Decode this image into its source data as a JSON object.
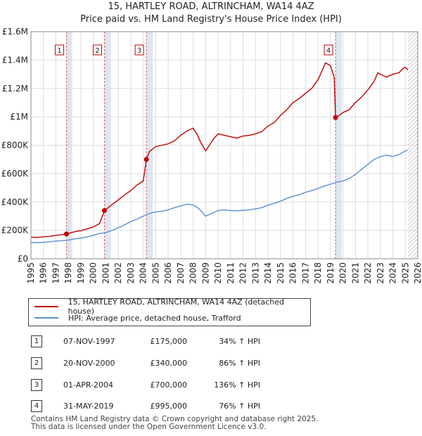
{
  "chart_data": {
    "type": "line",
    "title": "15, HARTLEY ROAD, ALTRINCHAM, WA14 4AZ",
    "subtitle": "Price paid vs. HM Land Registry's House Price Index (HPI)",
    "xlabel": "",
    "ylabel": "",
    "xlim": [
      1995,
      2026
    ],
    "ylim": [
      0,
      1600000
    ],
    "x_ticks": [
      "1995",
      "1996",
      "1997",
      "1998",
      "1999",
      "2000",
      "2001",
      "2002",
      "2003",
      "2004",
      "2005",
      "2006",
      "2007",
      "2008",
      "2009",
      "2010",
      "2011",
      "2012",
      "2013",
      "2014",
      "2015",
      "2016",
      "2017",
      "2018",
      "2019",
      "2020",
      "2021",
      "2022",
      "2023",
      "2024",
      "2025",
      "2026"
    ],
    "y_ticks": [
      {
        "value": 0,
        "label": "£0"
      },
      {
        "value": 200000,
        "label": "£200K"
      },
      {
        "value": 400000,
        "label": "£400K"
      },
      {
        "value": 600000,
        "label": "£600K"
      },
      {
        "value": 800000,
        "label": "£800K"
      },
      {
        "value": 1000000,
        "label": "£1M"
      },
      {
        "value": 1200000,
        "label": "£1.2M"
      },
      {
        "value": 1400000,
        "label": "£1.4M"
      },
      {
        "value": 1600000,
        "label": "£1.6M"
      }
    ],
    "grid": true,
    "shaded_spans": [
      {
        "label": "1",
        "start": 1997.85,
        "end": 1998.3
      },
      {
        "label": "2",
        "start": 2000.89,
        "end": 2001.4
      },
      {
        "label": "3",
        "start": 2004.25,
        "end": 2004.75
      },
      {
        "label": "4",
        "start": 2019.41,
        "end": 2019.9
      }
    ],
    "future_hatch_start": 2025.2,
    "series": [
      {
        "name": "15, HARTLEY ROAD, ALTRINCHAM, WA14 4AZ (detached house)",
        "color": "#c00000",
        "x": [
          1995.0,
          1995.5,
          1996.0,
          1996.5,
          1997.0,
          1997.5,
          1997.85,
          1998.5,
          1999.0,
          1999.5,
          2000.0,
          2000.5,
          2000.89,
          2001.5,
          2002.0,
          2002.5,
          2003.0,
          2003.5,
          2004.0,
          2004.25,
          2004.5,
          2005.0,
          2005.5,
          2006.0,
          2006.5,
          2007.0,
          2007.5,
          2008.0,
          2008.3,
          2008.6,
          2009.0,
          2009.3,
          2009.6,
          2010.0,
          2010.5,
          2011.0,
          2011.5,
          2012.0,
          2012.5,
          2013.0,
          2013.5,
          2014.0,
          2014.5,
          2015.0,
          2015.5,
          2016.0,
          2016.5,
          2017.0,
          2017.5,
          2018.0,
          2018.3,
          2018.6,
          2019.0,
          2019.3,
          2019.41,
          2019.7,
          2020.0,
          2020.5,
          2021.0,
          2021.5,
          2022.0,
          2022.5,
          2022.8,
          2023.0,
          2023.5,
          2024.0,
          2024.5,
          2024.8,
          2025.0,
          2025.2
        ],
        "values": [
          152000,
          150000,
          155000,
          158000,
          165000,
          170000,
          175000,
          190000,
          198000,
          210000,
          225000,
          248000,
          340000,
          382000,
          415000,
          450000,
          480000,
          520000,
          548000,
          700000,
          755000,
          790000,
          800000,
          810000,
          830000,
          870000,
          900000,
          920000,
          880000,
          820000,
          760000,
          800000,
          840000,
          880000,
          870000,
          860000,
          850000,
          865000,
          870000,
          880000,
          895000,
          935000,
          960000,
          1010000,
          1050000,
          1100000,
          1130000,
          1165000,
          1200000,
          1260000,
          1320000,
          1380000,
          1360000,
          1280000,
          995000,
          1010000,
          1030000,
          1050000,
          1100000,
          1140000,
          1190000,
          1250000,
          1310000,
          1300000,
          1280000,
          1300000,
          1310000,
          1340000,
          1350000,
          1330000
        ]
      },
      {
        "name": "HPI: Average price, detached house, Trafford",
        "color": "#5b8fd0",
        "x": [
          1995.0,
          1995.5,
          1996.0,
          1996.5,
          1997.0,
          1997.5,
          1998.0,
          1998.5,
          1999.0,
          1999.5,
          2000.0,
          2000.5,
          2001.0,
          2001.5,
          2002.0,
          2002.5,
          2003.0,
          2003.5,
          2004.0,
          2004.5,
          2005.0,
          2005.5,
          2006.0,
          2006.5,
          2007.0,
          2007.5,
          2008.0,
          2008.5,
          2009.0,
          2009.5,
          2010.0,
          2010.5,
          2011.0,
          2011.5,
          2012.0,
          2012.5,
          2013.0,
          2013.5,
          2014.0,
          2014.5,
          2015.0,
          2015.5,
          2016.0,
          2016.5,
          2017.0,
          2017.5,
          2018.0,
          2018.5,
          2019.0,
          2019.5,
          2020.0,
          2020.5,
          2021.0,
          2021.5,
          2022.0,
          2022.5,
          2023.0,
          2023.5,
          2024.0,
          2024.5,
          2025.0,
          2025.2
        ],
        "values": [
          115000,
          114000,
          116000,
          120000,
          125000,
          128000,
          132000,
          140000,
          146000,
          154000,
          165000,
          178000,
          185000,
          200000,
          218000,
          240000,
          262000,
          280000,
          300000,
          320000,
          330000,
          335000,
          345000,
          360000,
          372000,
          385000,
          380000,
          350000,
          300000,
          320000,
          340000,
          345000,
          340000,
          338000,
          342000,
          345000,
          352000,
          360000,
          378000,
          392000,
          405000,
          425000,
          440000,
          452000,
          468000,
          480000,
          495000,
          512000,
          525000,
          540000,
          548000,
          565000,
          595000,
          630000,
          665000,
          700000,
          720000,
          730000,
          720000,
          735000,
          760000,
          765000
        ]
      }
    ],
    "sales": [
      {
        "label": "1",
        "x": 1997.85,
        "value": 175000
      },
      {
        "label": "2",
        "x": 2000.89,
        "value": 340000
      },
      {
        "label": "3",
        "x": 2004.25,
        "value": 700000
      },
      {
        "label": "4",
        "x": 2019.41,
        "value": 995000
      }
    ]
  },
  "legend": {
    "property": "15, HARTLEY ROAD, ALTRINCHAM, WA14 4AZ (detached house)",
    "hpi": "HPI: Average price, detached house, Trafford"
  },
  "sales_table": [
    {
      "num": "1",
      "date": "07-NOV-1997",
      "price": "£175,000",
      "hpi": "34% ↑ HPI"
    },
    {
      "num": "2",
      "date": "20-NOV-2000",
      "price": "£340,000",
      "hpi": "86% ↑ HPI"
    },
    {
      "num": "3",
      "date": "01-APR-2004",
      "price": "£700,000",
      "hpi": "136% ↑ HPI"
    },
    {
      "num": "4",
      "date": "31-MAY-2019",
      "price": "£995,000",
      "hpi": "76% ↑ HPI"
    }
  ],
  "footer": {
    "line1": "Contains HM Land Registry data © Crown copyright and database right 2025.",
    "line2": "This data is licensed under the Open Government Licence v3.0."
  },
  "colors": {
    "property": "#c00000",
    "hpi": "#5b8fd0",
    "shade": "#dde6f5",
    "sale_line": "#e06060",
    "grid": "#dddddd"
  }
}
